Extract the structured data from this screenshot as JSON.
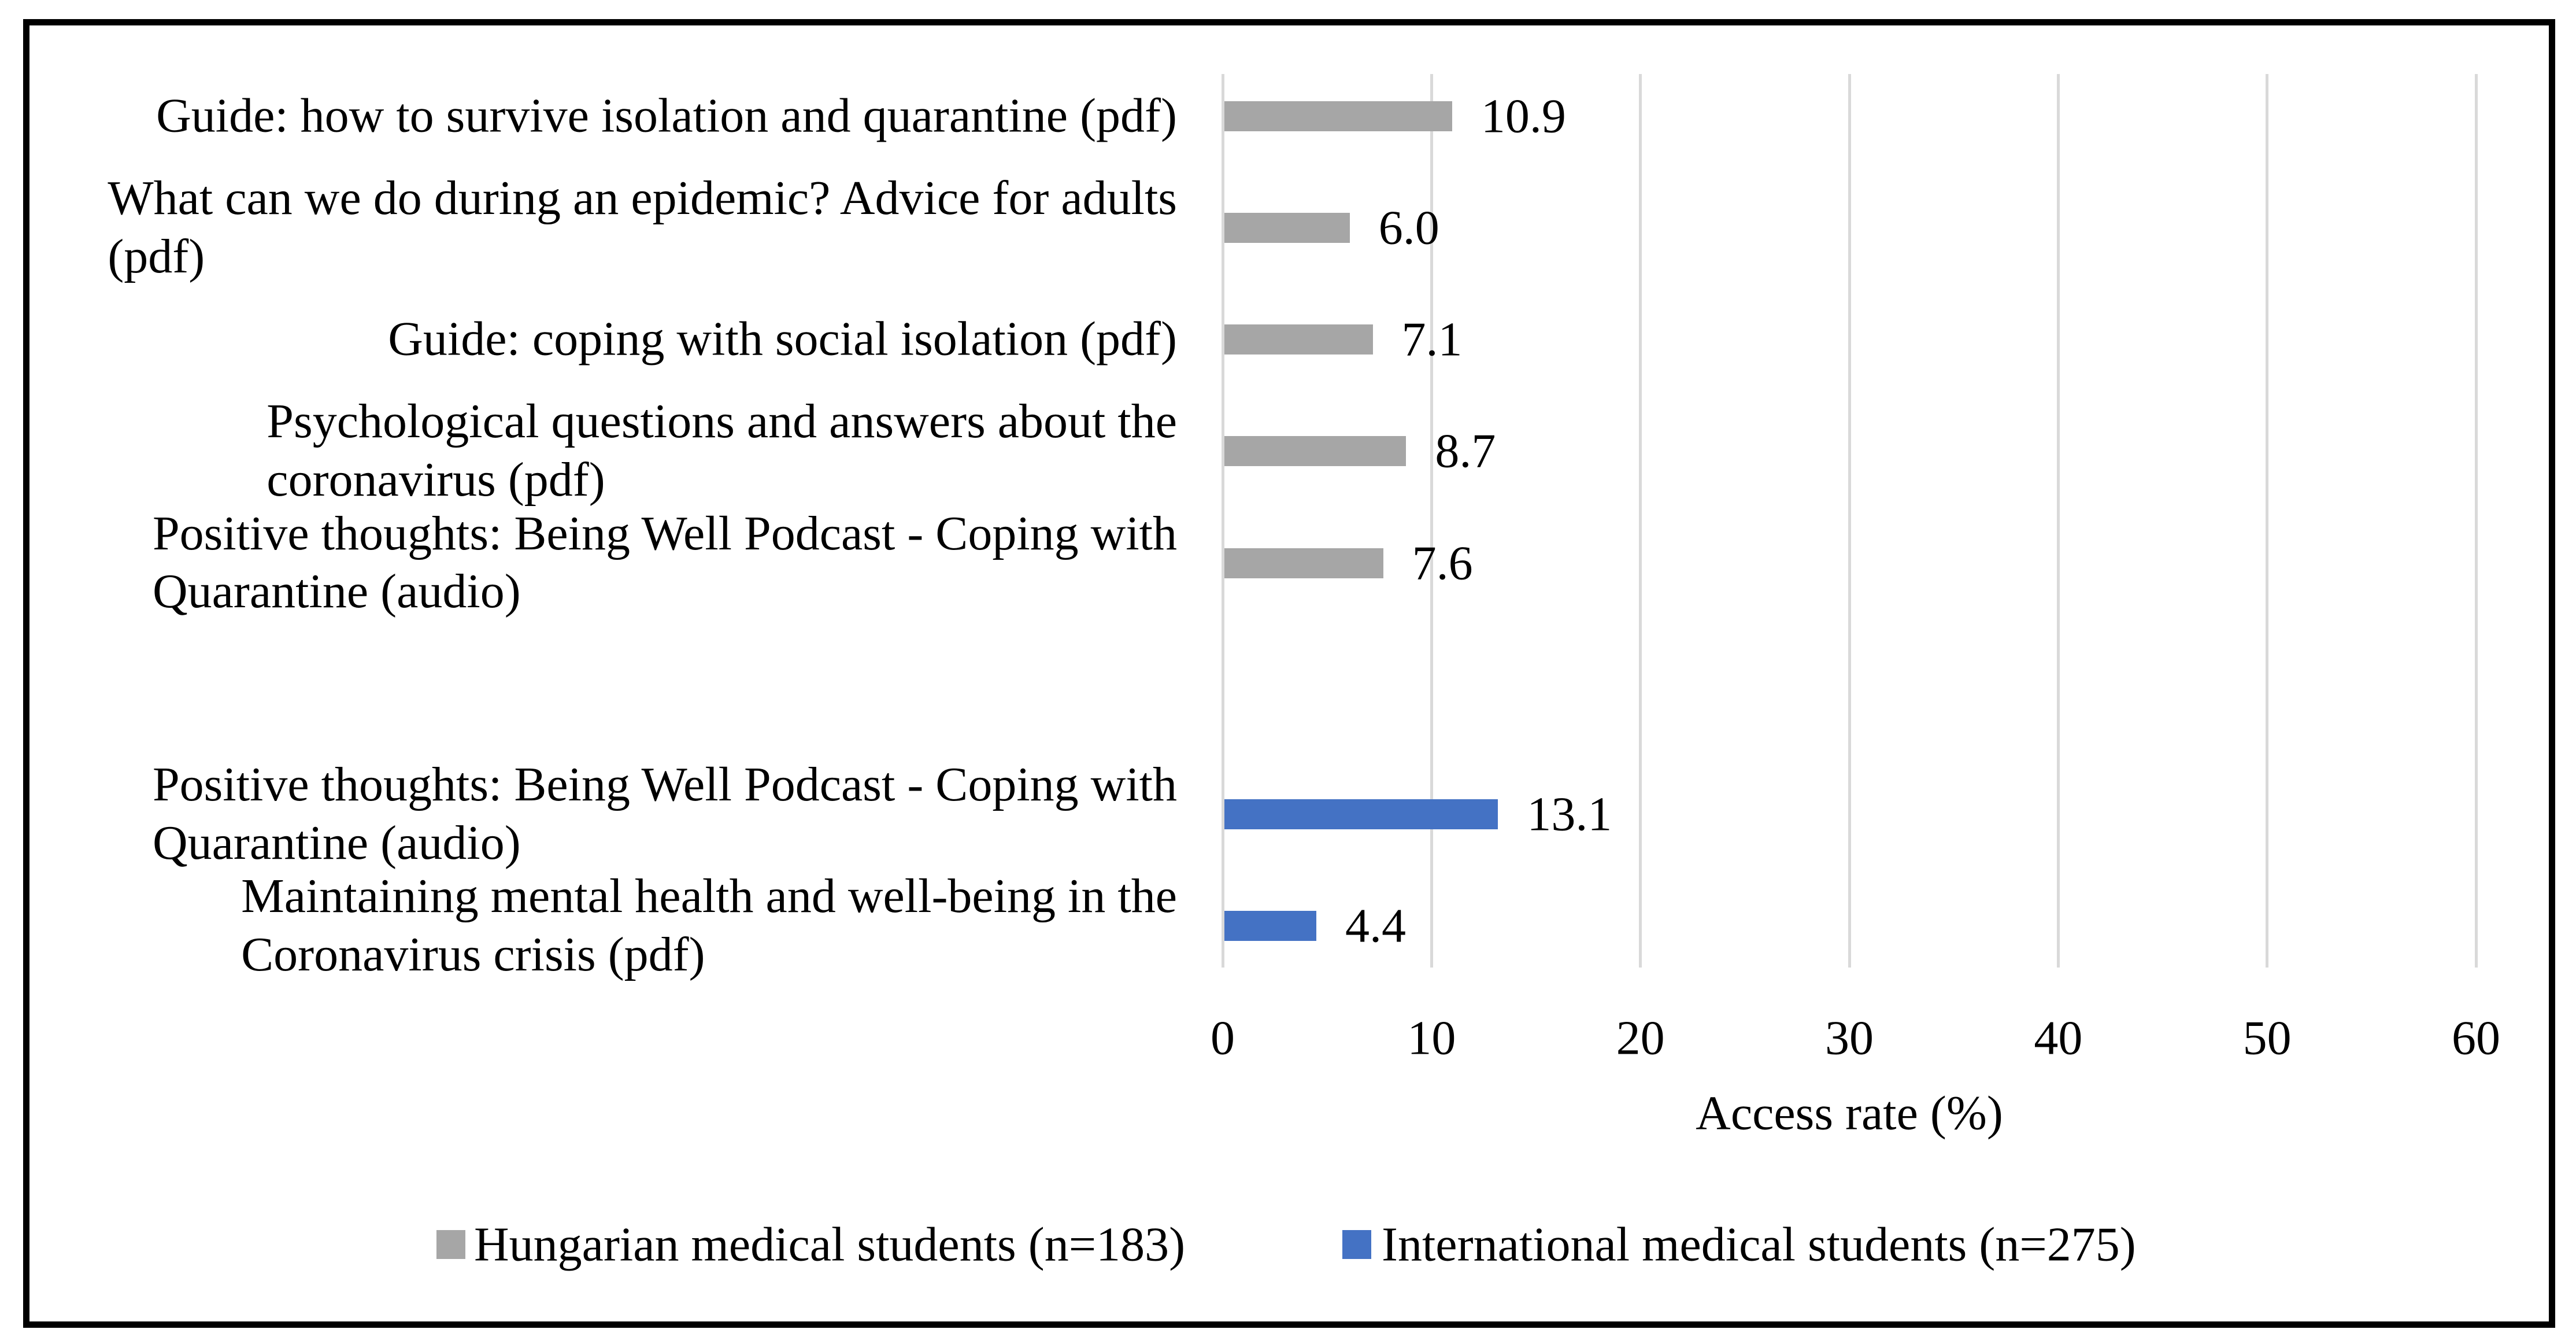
{
  "chart_data": {
    "type": "bar",
    "orientation": "horizontal",
    "title": "",
    "xlabel": "Access rate (%)",
    "ylabel": "",
    "xlim": [
      0,
      60
    ],
    "x_ticks": [
      0,
      10,
      20,
      30,
      40,
      50,
      60
    ],
    "grid": "vertical-only",
    "grid_color": "#d9d9d9",
    "legend_position": "bottom",
    "series": [
      {
        "key": "hungarian",
        "label": "Hungarian medical students (n=183)",
        "color": "#a6a6a6"
      },
      {
        "key": "international",
        "label": "International medical students (n=275)",
        "color": "#4472c4"
      }
    ],
    "categories": [
      {
        "label": "Guide: how to survive isolation and quarantine (pdf)",
        "series": "hungarian",
        "value": 10.9,
        "value_label": "10.9"
      },
      {
        "label": "What can we do during an epidemic? Advice for adults\n(pdf)",
        "series": "hungarian",
        "value": 6.0,
        "value_label": "6.0"
      },
      {
        "label": "Guide: coping with social isolation (pdf)",
        "series": "hungarian",
        "value": 7.1,
        "value_label": "7.1"
      },
      {
        "label": "Psychological questions and answers about the\ncoronavirus (pdf)",
        "series": "hungarian",
        "value": 8.7,
        "value_label": "8.7"
      },
      {
        "label": "Positive thoughts: Being Well Podcast - Coping with\nQuarantine (audio)",
        "series": "hungarian",
        "value": 7.6,
        "value_label": "7.6"
      },
      {
        "label": "",
        "series": null,
        "value": null,
        "value_label": ""
      },
      {
        "label": "Positive thoughts: Being Well Podcast - Coping with\nQuarantine (audio)",
        "series": "international",
        "value": 13.1,
        "value_label": "13.1"
      },
      {
        "label": "Maintaining mental health and well-being in the\nCoronavirus crisis (pdf)",
        "series": "international",
        "value": 4.4,
        "value_label": "4.4"
      }
    ]
  }
}
